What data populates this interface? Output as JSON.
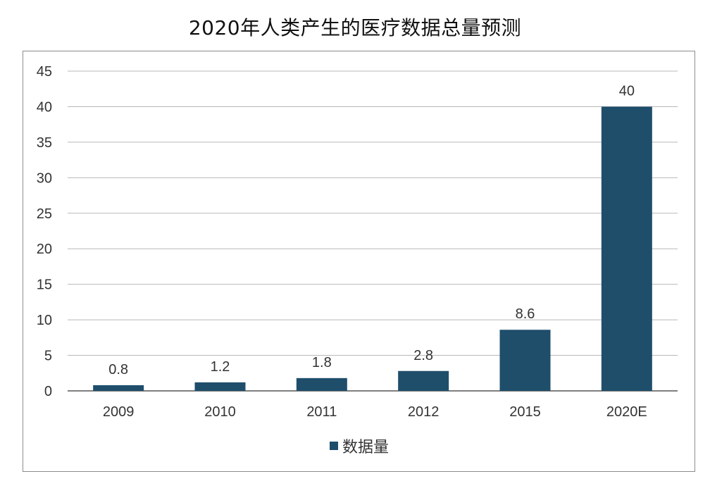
{
  "chart_data": {
    "type": "bar",
    "title": "2020年人类产生的医疗数据总量预测",
    "categories": [
      "2009",
      "2010",
      "2011",
      "2012",
      "2015",
      "2020E"
    ],
    "series": [
      {
        "name": "数据量",
        "values": [
          0.8,
          1.2,
          1.8,
          2.8,
          8.6,
          40
        ],
        "color": "#1f4e6b"
      }
    ],
    "data_labels": [
      "0.8",
      "1.2",
      "1.8",
      "2.8",
      "8.6",
      "40"
    ],
    "ylim": [
      0,
      45
    ],
    "yticks": [
      0,
      5,
      10,
      15,
      20,
      25,
      30,
      35,
      40,
      45
    ],
    "grid": true,
    "legend": "bottom-center"
  }
}
